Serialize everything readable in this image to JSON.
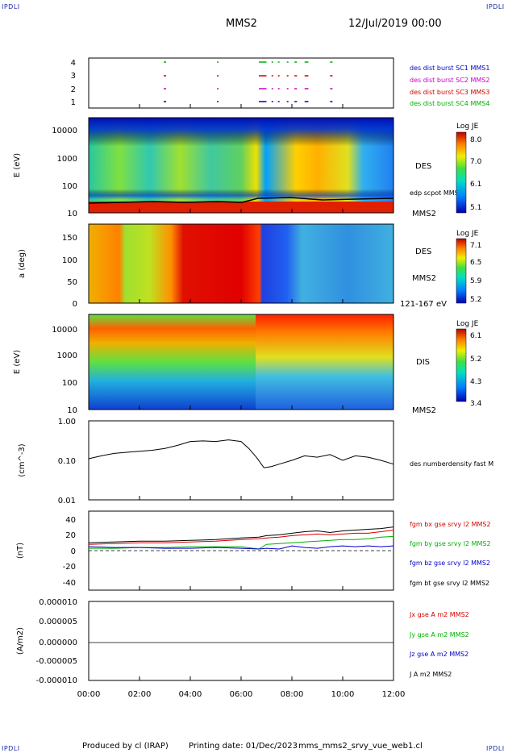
{
  "corner_label": "IPDLI",
  "header": {
    "spacecraft": "MMS2",
    "date": "12/Jul/2019 00:00"
  },
  "footer": {
    "produced": "Produced by cl (IRAP)",
    "printing": "Printing date: 01/Dec/2023",
    "file": "mms_mms2_srvy_vue_web1.cl"
  },
  "time_axis": {
    "ticks": [
      "00:00",
      "02:00",
      "04:00",
      "06:00",
      "08:00",
      "10:00",
      "12:00"
    ],
    "range_hours": [
      0,
      12
    ]
  },
  "colors": {
    "red": "#d40000",
    "green": "#00b000",
    "blue": "#0000c8",
    "magenta": "#c800c8",
    "black": "#000000"
  },
  "chart_data": [
    {
      "type": "scatter",
      "name": "burst-availability",
      "y_ticks": [
        "4",
        "3",
        "2",
        "1"
      ],
      "legend": [
        {
          "label": "des dist burst SC1 MMS1",
          "color": "#0000c8"
        },
        {
          "label": "des dist burst SC2 MMS2",
          "color": "#c800c8"
        },
        {
          "label": "des dist burst SC3 MMS3",
          "color": "#d40000"
        },
        {
          "label": "des dist burst SC4 MMS4",
          "color": "#00b000"
        }
      ],
      "segments_hours": [
        [
          2.95,
          3.05
        ],
        [
          5.05,
          5.08
        ],
        [
          6.7,
          7.0
        ],
        [
          7.2,
          7.25
        ],
        [
          7.45,
          7.5
        ],
        [
          7.8,
          7.85
        ],
        [
          8.1,
          8.2
        ],
        [
          8.5,
          8.65
        ],
        [
          9.5,
          9.6
        ]
      ]
    },
    {
      "type": "heatmap",
      "name": "des-energy-spectrogram",
      "ylabel": "E (eV)",
      "y_ticks": [
        "10000",
        "1000",
        "100",
        "10"
      ],
      "label": "DES",
      "overlay_label": "edp scpot MMS2",
      "sc_label": "MMS2",
      "colorbar": {
        "title": "Log JE",
        "ticks": [
          "8.0",
          "7.0",
          "6.1",
          "5.1"
        ]
      }
    },
    {
      "type": "heatmap",
      "name": "des-pitch-angle",
      "ylabel": "a (deg)",
      "y_ticks": [
        "150",
        "100",
        "50",
        "0"
      ],
      "label": "DES",
      "sc_label": "MMS2",
      "energy_label": "121-167 eV",
      "colorbar": {
        "title": "Log JE",
        "ticks": [
          "7.1",
          "6.5",
          "5.9",
          "5.2"
        ]
      }
    },
    {
      "type": "heatmap",
      "name": "dis-energy-spectrogram",
      "ylabel": "E (eV)",
      "y_ticks": [
        "10000",
        "1000",
        "100",
        "10"
      ],
      "label": "DIS",
      "sc_label": "MMS2",
      "colorbar": {
        "title": "Log JE",
        "ticks": [
          "6.1",
          "5.2",
          "4.3",
          "3.4"
        ]
      }
    },
    {
      "type": "line",
      "name": "density",
      "ylabel": "(cm^-3)",
      "y_ticks": [
        "1.00",
        "0.10",
        "0.01"
      ],
      "ylim_log": [
        0.01,
        1.0
      ],
      "series": [
        {
          "label": "des numberdensity fast M",
          "color": "#000000",
          "x": [
            0,
            0.5,
            1,
            1.5,
            2,
            2.5,
            3,
            3.5,
            4,
            4.5,
            5,
            5.5,
            6,
            6.3,
            6.6,
            6.9,
            7.2,
            7.5,
            8,
            8.5,
            9,
            9.5,
            10,
            10.5,
            11,
            11.5,
            12
          ],
          "y": [
            0.11,
            0.13,
            0.15,
            0.16,
            0.17,
            0.18,
            0.2,
            0.24,
            0.3,
            0.31,
            0.3,
            0.33,
            0.3,
            0.2,
            0.12,
            0.065,
            0.07,
            0.08,
            0.1,
            0.13,
            0.12,
            0.14,
            0.1,
            0.13,
            0.12,
            0.1,
            0.08
          ]
        }
      ]
    },
    {
      "type": "line",
      "name": "magnetic-field",
      "ylabel": "(nT)",
      "y_ticks": [
        "40",
        "20",
        "0",
        "-20",
        "-40"
      ],
      "ylim": [
        -50,
        50
      ],
      "series": [
        {
          "label": "fgm bx gse srvy l2 MMS2",
          "color": "#d40000",
          "x": [
            0,
            1,
            2,
            3,
            4,
            5,
            6,
            6.7,
            7,
            7.5,
            8,
            8.5,
            9,
            9.5,
            10,
            10.5,
            11,
            11.5,
            12
          ],
          "y": [
            8,
            9,
            10,
            10,
            11,
            12,
            14,
            15,
            16,
            17,
            19,
            20,
            21,
            20,
            21,
            22,
            22,
            24,
            26
          ]
        },
        {
          "label": "fgm by gse srvy l2 MMS2",
          "color": "#00b000",
          "x": [
            0,
            1,
            2,
            3,
            4,
            5,
            6,
            6.7,
            7,
            7.5,
            8,
            8.5,
            9,
            9.5,
            10,
            10.5,
            11,
            11.5,
            12
          ],
          "y": [
            3,
            3,
            4,
            4,
            5,
            5,
            5,
            2,
            8,
            9,
            10,
            11,
            12,
            13,
            14,
            14,
            15,
            17,
            18
          ]
        },
        {
          "label": "fgm bz gse srvy l2 MMS2",
          "color": "#0000c8",
          "x": [
            0,
            1,
            2,
            3,
            4,
            5,
            6,
            6.7,
            7,
            7.5,
            8,
            8.5,
            9,
            9.5,
            10,
            10.5,
            11,
            11.5,
            12
          ],
          "y": [
            5,
            4,
            4,
            3,
            3,
            4,
            3,
            2,
            3,
            2,
            6,
            4,
            3,
            5,
            6,
            5,
            6,
            5,
            6
          ]
        },
        {
          "label": "fgm bt gse srvy l2 MMS2",
          "color": "#000000",
          "x": [
            0,
            1,
            2,
            3,
            4,
            5,
            6,
            6.7,
            7,
            7.5,
            8,
            8.5,
            9,
            9.5,
            10,
            10.5,
            11,
            11.5,
            12
          ],
          "y": [
            10,
            11,
            12,
            12,
            13,
            14,
            16,
            17,
            19,
            20,
            22,
            24,
            25,
            23,
            25,
            26,
            27,
            28,
            30
          ]
        }
      ]
    },
    {
      "type": "line",
      "name": "current-density",
      "ylabel": "(A/m2)",
      "y_ticks": [
        "0.000010",
        "0.000005",
        "0.000000",
        "-0.000005",
        "-0.000010"
      ],
      "ylim": [
        -1e-05,
        1e-05
      ],
      "series": [
        {
          "label": "Jx gse A m2 MMS2",
          "color": "#d40000",
          "x": [
            0,
            12
          ],
          "y": [
            0,
            0
          ]
        },
        {
          "label": "Jy gse A m2 MMS2",
          "color": "#00b000",
          "x": [
            0,
            12
          ],
          "y": [
            0,
            0
          ]
        },
        {
          "label": "Jz gse A m2 MMS2",
          "color": "#0000c8",
          "x": [
            0,
            12
          ],
          "y": [
            0,
            0
          ]
        },
        {
          "label": "J A m2 MMS2",
          "color": "#000000",
          "x": [
            0,
            12
          ],
          "y": [
            0,
            0
          ]
        }
      ]
    }
  ]
}
